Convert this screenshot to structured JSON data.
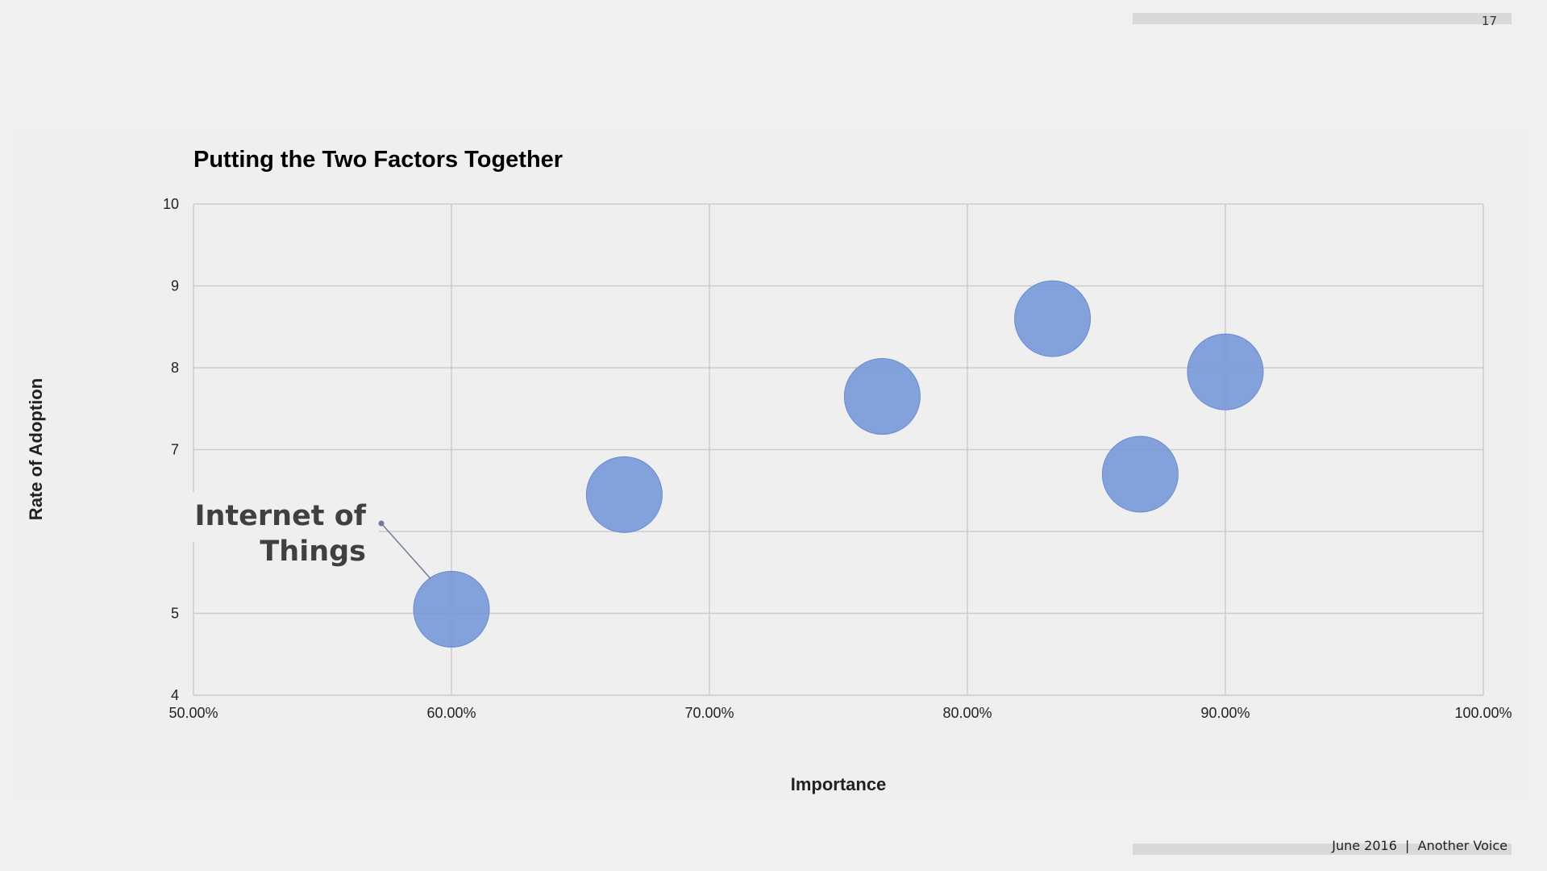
{
  "slide": {
    "page_number": "17",
    "footer": "June 2016  |  Another Voice"
  },
  "colors": {
    "bubble": "#7094d8",
    "grid": "#cccccc",
    "annotation_text": "#404040",
    "connector": "#6b7d99"
  },
  "chart_data": {
    "type": "scatter",
    "title": "Putting the Two Factors Together",
    "xlabel": "Importance",
    "ylabel": "Rate of Adoption",
    "xlim": [
      50,
      100
    ],
    "ylim": [
      4,
      10
    ],
    "x_ticks": [
      50,
      60,
      70,
      80,
      90,
      100
    ],
    "x_tick_labels": [
      "50.00%",
      "60.00%",
      "70.00%",
      "80.00%",
      "90.00%",
      "100.00%"
    ],
    "y_tick_labels": [
      "10",
      "9",
      "8",
      "7",
      "5",
      "4"
    ],
    "grid": true,
    "points": [
      {
        "x": 60.0,
        "y": 5.05,
        "label": "Internet of Things"
      },
      {
        "x": 66.7,
        "y": 6.45
      },
      {
        "x": 76.7,
        "y": 7.65
      },
      {
        "x": 83.3,
        "y": 8.6
      },
      {
        "x": 86.7,
        "y": 6.7
      },
      {
        "x": 90.0,
        "y": 7.95
      }
    ],
    "annotations": [
      {
        "lines": [
          "Internet of",
          "Things"
        ],
        "point_index": 0
      }
    ]
  }
}
